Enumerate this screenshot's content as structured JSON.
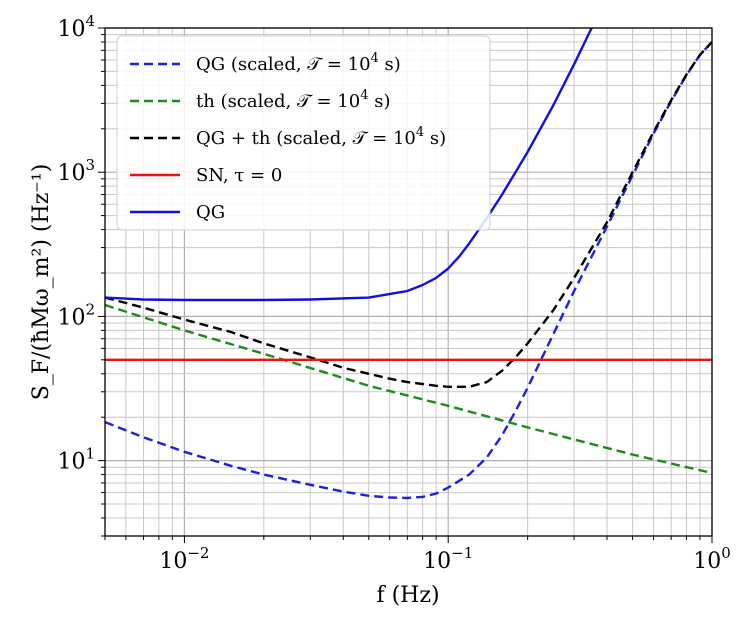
{
  "chart_data": {
    "type": "line",
    "xlabel": "f (Hz)",
    "ylabel": "S_F/(ħMω_m²)   (Hz⁻¹)",
    "xscale": "log",
    "yscale": "log",
    "xlim": [
      0.005,
      1.0
    ],
    "ylim": [
      3,
      10000
    ],
    "grid": "on (major and minor)",
    "legend_position": "top-left",
    "x_ticks": [
      {
        "value": 0.01,
        "base": "10",
        "exp": "−2"
      },
      {
        "value": 0.1,
        "base": "10",
        "exp": "−1"
      },
      {
        "value": 1.0,
        "base": "10",
        "exp": "0"
      }
    ],
    "y_ticks": [
      {
        "value": 10,
        "base": "10",
        "exp": "1"
      },
      {
        "value": 100,
        "base": "10",
        "exp": "2"
      },
      {
        "value": 1000,
        "base": "10",
        "exp": "3"
      },
      {
        "value": 10000,
        "base": "10",
        "exp": "4"
      }
    ],
    "series": [
      {
        "name": "QG (scaled, 𝒯 = 10⁴ s)",
        "legend_main": "QG (scaled, 𝒯 = 10",
        "legend_exp": "4",
        "legend_tail": " s)",
        "color": "#1f1fe0",
        "dash": "dashed",
        "points": [
          [
            0.005,
            18.5
          ],
          [
            0.007,
            14.5
          ],
          [
            0.01,
            11.5
          ],
          [
            0.015,
            9.2
          ],
          [
            0.02,
            8.0
          ],
          [
            0.03,
            6.8
          ],
          [
            0.04,
            6.1
          ],
          [
            0.05,
            5.7
          ],
          [
            0.06,
            5.55
          ],
          [
            0.07,
            5.5
          ],
          [
            0.08,
            5.6
          ],
          [
            0.09,
            5.9
          ],
          [
            0.1,
            6.5
          ],
          [
            0.12,
            8.0
          ],
          [
            0.14,
            10.5
          ],
          [
            0.16,
            15
          ],
          [
            0.18,
            22
          ],
          [
            0.2,
            32
          ],
          [
            0.25,
            75
          ],
          [
            0.3,
            150
          ],
          [
            0.4,
            420
          ],
          [
            0.5,
            950
          ],
          [
            0.6,
            1850
          ],
          [
            0.7,
            3100
          ],
          [
            0.8,
            4700
          ],
          [
            0.9,
            6500
          ],
          [
            1.0,
            8000
          ]
        ]
      },
      {
        "name": "th (scaled, 𝒯 = 10⁴ s)",
        "legend_main": "th (scaled, 𝒯 = 10",
        "legend_exp": "4",
        "legend_tail": " s)",
        "color": "#1a8c1a",
        "dash": "dashed",
        "points": [
          [
            0.005,
            120
          ],
          [
            0.01,
            80
          ],
          [
            0.02,
            55
          ],
          [
            0.05,
            33
          ],
          [
            0.1,
            24
          ],
          [
            0.2,
            17
          ],
          [
            0.5,
            11
          ],
          [
            1.0,
            8.2
          ]
        ]
      },
      {
        "name": "QG + th (scaled, 𝒯 = 10⁴ s)",
        "legend_main": "QG + th (scaled, 𝒯 = 10",
        "legend_exp": "4",
        "legend_tail": " s)",
        "color": "#000000",
        "dash": "dashed",
        "points": [
          [
            0.005,
            135
          ],
          [
            0.007,
            115
          ],
          [
            0.01,
            95
          ],
          [
            0.015,
            78
          ],
          [
            0.02,
            65
          ],
          [
            0.03,
            52
          ],
          [
            0.04,
            44
          ],
          [
            0.05,
            40
          ],
          [
            0.06,
            37
          ],
          [
            0.07,
            35
          ],
          [
            0.08,
            34
          ],
          [
            0.09,
            33
          ],
          [
            0.1,
            32.5
          ],
          [
            0.12,
            32.5
          ],
          [
            0.14,
            35
          ],
          [
            0.16,
            42
          ],
          [
            0.18,
            52
          ],
          [
            0.2,
            65
          ],
          [
            0.25,
            110
          ],
          [
            0.3,
            185
          ],
          [
            0.4,
            450
          ],
          [
            0.5,
            1000
          ],
          [
            0.6,
            1900
          ],
          [
            0.7,
            3150
          ],
          [
            0.8,
            4750
          ],
          [
            0.9,
            6500
          ],
          [
            1.0,
            8000
          ]
        ]
      },
      {
        "name": "SN, τ = 0",
        "legend_main": "SN, τ = 0",
        "legend_exp": "",
        "legend_tail": "",
        "color": "#ee1111",
        "dash": "solid",
        "points": [
          [
            0.005,
            50
          ],
          [
            1.0,
            50
          ]
        ]
      },
      {
        "name": "QG",
        "legend_main": "QG",
        "legend_exp": "",
        "legend_tail": "",
        "color": "#1010e0",
        "dash": "solid",
        "points": [
          [
            0.005,
            135
          ],
          [
            0.007,
            131
          ],
          [
            0.01,
            130
          ],
          [
            0.02,
            130
          ],
          [
            0.03,
            131
          ],
          [
            0.05,
            135
          ],
          [
            0.07,
            150
          ],
          [
            0.08,
            165
          ],
          [
            0.09,
            185
          ],
          [
            0.1,
            215
          ],
          [
            0.11,
            260
          ],
          [
            0.12,
            320
          ],
          [
            0.14,
            480
          ],
          [
            0.16,
            700
          ],
          [
            0.18,
            1000
          ],
          [
            0.2,
            1380
          ],
          [
            0.25,
            2900
          ],
          [
            0.3,
            5600
          ],
          [
            0.34,
            9000
          ],
          [
            0.35,
            10000
          ]
        ]
      }
    ]
  }
}
